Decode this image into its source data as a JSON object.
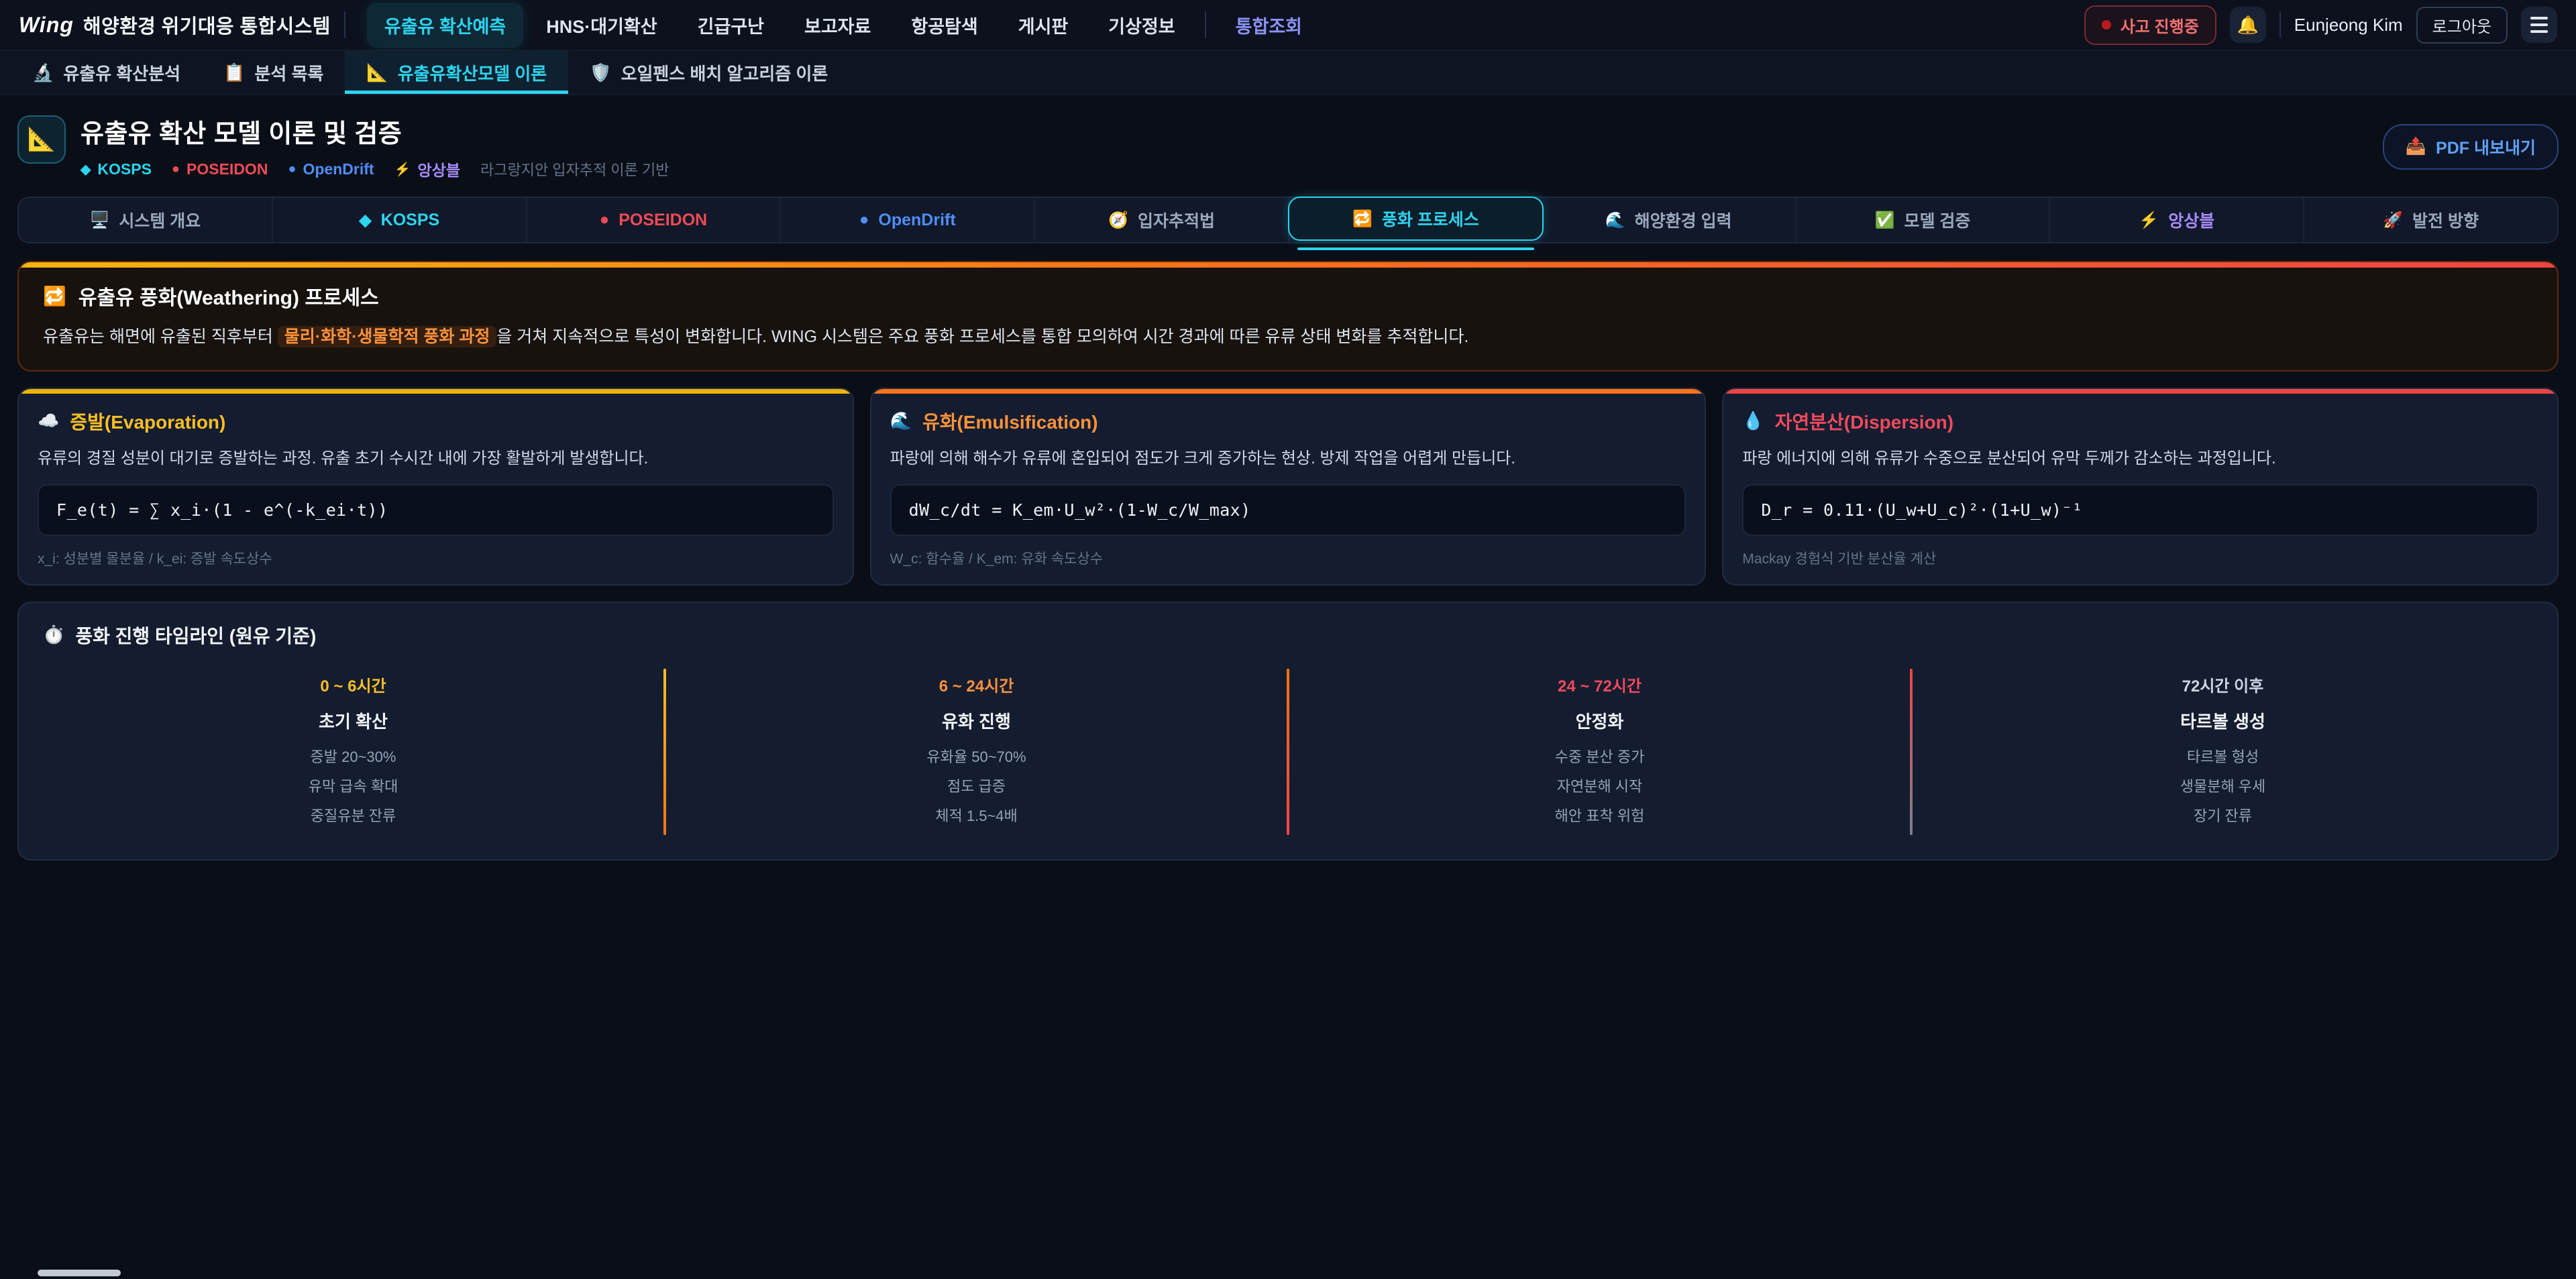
{
  "nav": {
    "logo_mark": "Wing",
    "logo_title": "해양환경 위기대응 통합시스템",
    "items": [
      {
        "label": "유출유 확산예측",
        "active": true
      },
      {
        "label": "HNS·대기확산"
      },
      {
        "label": "긴급구난"
      },
      {
        "label": "보고자료"
      },
      {
        "label": "항공탐색"
      },
      {
        "label": "게시판"
      },
      {
        "label": "기상정보"
      },
      {
        "label": "통합조회"
      }
    ],
    "incident_badge": "사고 진행중",
    "bell_icon": "🔔",
    "user_name": "Eunjeong Kim",
    "logout_label": "로그아웃"
  },
  "subtabs": {
    "items": [
      {
        "icon": "🔬",
        "label": "유출유 확산분석"
      },
      {
        "icon": "📋",
        "label": "분석 목록"
      },
      {
        "icon": "📐",
        "label": "유출유확산모델 이론",
        "active": true
      },
      {
        "icon": "🛡️",
        "label": "오일펜스 배치 알고리즘 이론"
      }
    ]
  },
  "header": {
    "icon": "📐",
    "title": "유출유 확산 모델 이론 및 검증",
    "badges": [
      {
        "icon": "◆",
        "label": "KOSPS",
        "color": "#2dd4ee"
      },
      {
        "icon": "●",
        "label": "POSEIDON",
        "color": "#ef4b57"
      },
      {
        "icon": "●",
        "label": "OpenDrift",
        "color": "#4f8ef7"
      },
      {
        "icon": "⚡",
        "label": "앙상블",
        "color": "#a78bfa"
      }
    ],
    "note": "라그랑지안 입자추적 이론 기반",
    "pdf_button": {
      "icon": "📤",
      "label": "PDF 내보내기"
    }
  },
  "tabs": {
    "items": [
      {
        "icon": "🖥️",
        "label": "시스템 개요",
        "color": "#9aa7bd"
      },
      {
        "icon": "◆",
        "label": "KOSPS",
        "color": "#2dd4ee"
      },
      {
        "icon": "●",
        "label": "POSEIDON",
        "color": "#ef4b57"
      },
      {
        "icon": "●",
        "label": "OpenDrift",
        "color": "#4f8ef7"
      },
      {
        "icon": "🧭",
        "label": "입자추적법",
        "color": "#9aa7bd"
      },
      {
        "icon": "🔁",
        "label": "풍화 프로세스",
        "color": "#2dd4ee",
        "active": true
      },
      {
        "icon": "🌊",
        "label": "해양환경 입력",
        "color": "#9aa7bd"
      },
      {
        "icon": "✅",
        "label": "모델 검증",
        "color": "#9aa7bd"
      },
      {
        "icon": "⚡",
        "label": "앙상블",
        "color": "#a78bfa"
      },
      {
        "icon": "🚀",
        "label": "발전 방향",
        "color": "#9aa7bd"
      }
    ]
  },
  "weathering": {
    "icon": "🔁",
    "title": "유출유 풍화(Weathering) 프로세스",
    "desc_before": "유출유는 해면에 유출된 직후부터 ",
    "desc_highlight": "물리·화학·생물학적 풍화 과정",
    "desc_after": "을 거쳐 지속적으로 특성이 변화합니다. WING 시스템은 주요 풍화 프로세스를 통합 모의하여 시간 경과에 따른 유류 상태 변화를 추적합니다."
  },
  "cards": [
    {
      "icon": "☁️",
      "title": "증발(Evaporation)",
      "title_color": "#fbbf24",
      "accent": "#eab308",
      "desc": "유류의 경질 성분이 대기로 증발하는 과정. 유출 초기 수시간 내에 가장 활발하게 발생합니다.",
      "formula": "F_e(t) = ∑ x_i·(1 - e^(-k_ei·t))",
      "note": "x_i: 성분별 몰분율 / k_ei: 증발 속도상수"
    },
    {
      "icon": "🌊",
      "title": "유화(Emulsification)",
      "title_color": "#fb923c",
      "accent": "#f97316",
      "desc": "파랑에 의해 해수가 유류에 혼입되어 점도가 크게 증가하는 현상. 방제 작업을 어렵게 만듭니다.",
      "formula": "dW_c/dt = K_em·U_w²·(1-W_c/W_max)",
      "note": "W_c: 함수율 / K_em: 유화 속도상수"
    },
    {
      "icon": "💧",
      "title": "자연분산(Dispersion)",
      "title_color": "#f04a5e",
      "accent": "#ef4444",
      "desc": "파랑 에너지에 의해 유류가 수중으로 분산되어 유막 두께가 감소하는 과정입니다.",
      "formula": "D_r = 0.11·(U_w+U_c)²·(1+U_w)⁻¹",
      "note": "Mackay 경험식 기반 분산율 계산"
    }
  ],
  "timeline": {
    "icon": "⏱️",
    "title": "풍화 진행 타임라인 (원유 기준)",
    "phases": [
      {
        "time": "0 ~ 6시간",
        "color": "#fbbf24",
        "phase": "초기 확산",
        "items": [
          "증발 20~30%",
          "유막 급속 확대",
          "중질유분 잔류"
        ]
      },
      {
        "time": "6 ~ 24시간",
        "color": "#fb923c",
        "phase": "유화 진행",
        "items": [
          "유화율 50~70%",
          "점도 급증",
          "체적 1.5~4배"
        ]
      },
      {
        "time": "24 ~ 72시간",
        "color": "#f04a5e",
        "phase": "안정화",
        "items": [
          "수중 분산 증가",
          "자연분해 시작",
          "해안 표착 위험"
        ]
      },
      {
        "time": "72시간 이후",
        "color": "#cbd5e1",
        "phase": "타르볼 생성",
        "items": [
          "타르볼 형성",
          "생물분해 우세",
          "장기 잔류"
        ]
      }
    ]
  }
}
